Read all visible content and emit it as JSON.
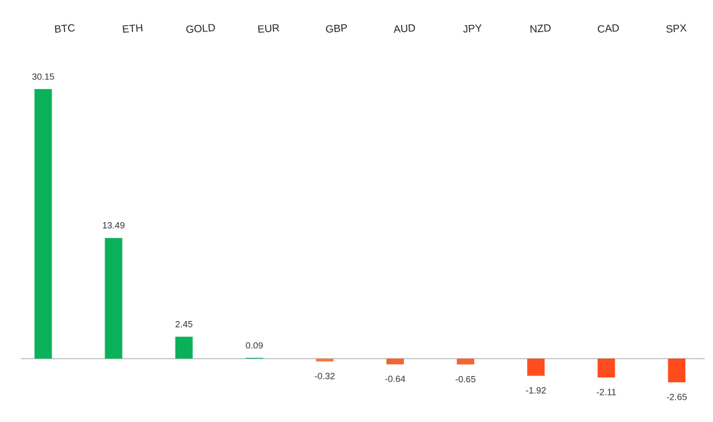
{
  "chart_data": {
    "type": "bar",
    "categories": [
      "BTC",
      "ETH",
      "GOLD",
      "EUR",
      "GBP",
      "AUD",
      "JPY",
      "NZD",
      "CAD",
      "SPX"
    ],
    "values": [
      30.15,
      13.49,
      2.45,
      0.09,
      -0.32,
      -0.64,
      -0.65,
      -1.92,
      -2.11,
      -2.65
    ],
    "colors": [
      "#0bb15a",
      "#0bb15a",
      "#0bb15a",
      "#0bb15a",
      "#f57a3c",
      "#f5642e",
      "#f5642e",
      "#ff4d1f",
      "#ff4d1f",
      "#ff4a1c"
    ],
    "ylim": [
      -5,
      35
    ]
  }
}
